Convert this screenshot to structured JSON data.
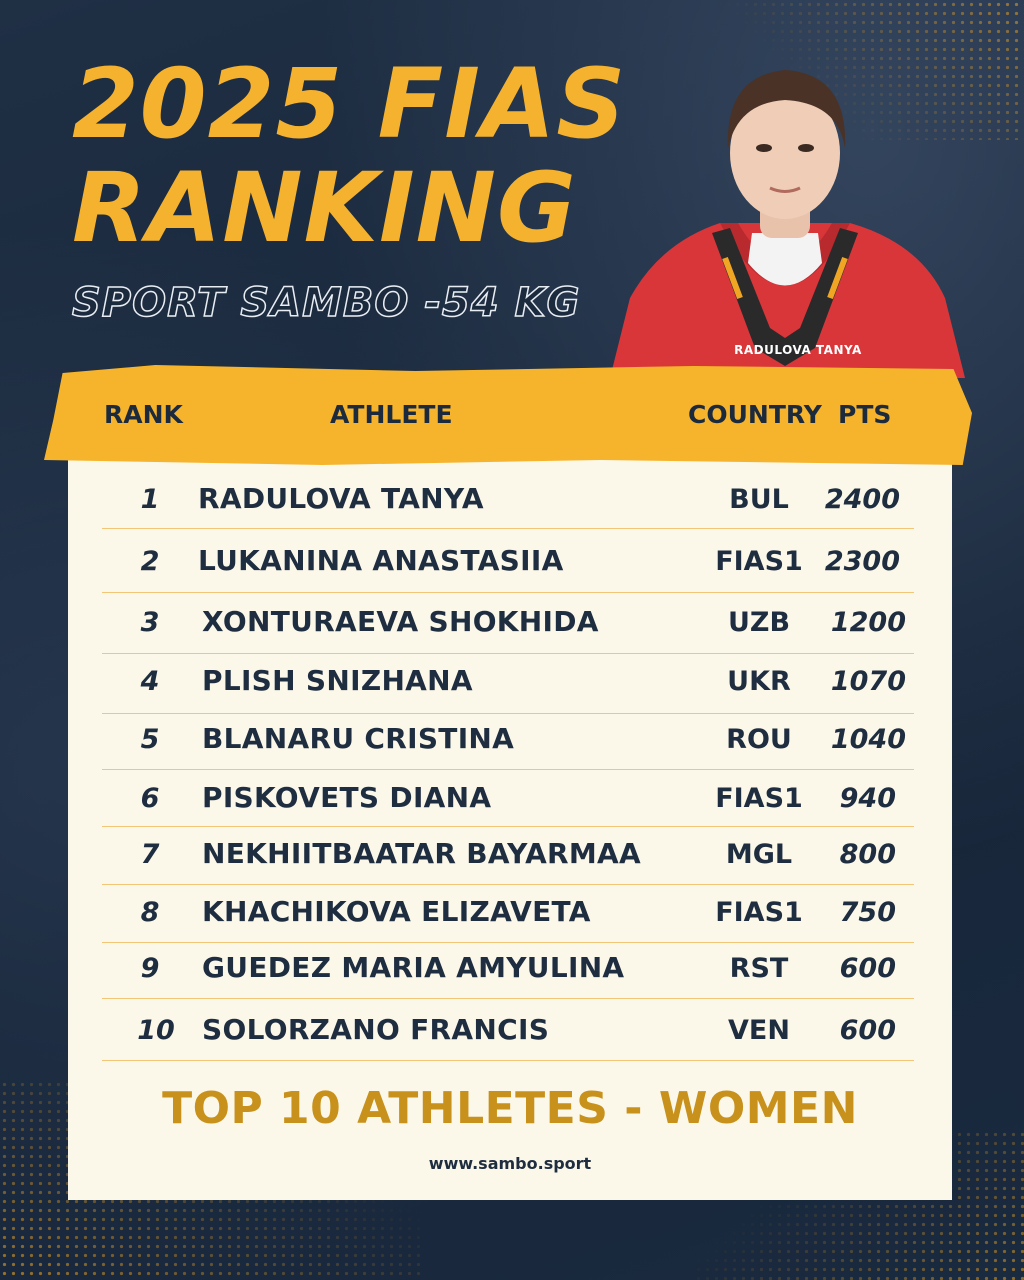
{
  "title_line1": "2025 FIAS",
  "title_line2": "RANKING",
  "subtitle": "SPORT SAMBO -54 KG",
  "photo_caption": "RADULOVA TANYA",
  "headers": {
    "rank": "RANK",
    "athlete": "ATHLETE",
    "country": "COUNTRY",
    "pts": "PTS"
  },
  "rows": [
    {
      "rank": "1",
      "name": "RADULOVA TANYA",
      "country": "BUL",
      "pts": "2400"
    },
    {
      "rank": "2",
      "name": "LUKANINA ANASTASIIA",
      "country": "FIAS1",
      "pts": "2300"
    },
    {
      "rank": "3",
      "name": "XONTURAEVA SHOKHIDA",
      "country": "UZB",
      "pts": "1200"
    },
    {
      "rank": "4",
      "name": "PLISH SNIZHANA",
      "country": "UKR",
      "pts": "1070"
    },
    {
      "rank": "5",
      "name": "BLANARU CRISTINA",
      "country": "ROU",
      "pts": "1040"
    },
    {
      "rank": "6",
      "name": "PISKOVETS DIANA",
      "country": "FIAS1",
      "pts": "940"
    },
    {
      "rank": "7",
      "name": "NEKHIITBAATAR BAYARMAA",
      "country": "MGL",
      "pts": "800"
    },
    {
      "rank": "8",
      "name": "KHACHIKOVA ELIZAVETA",
      "country": "FIAS1",
      "pts": "750"
    },
    {
      "rank": "9",
      "name": "GUEDEZ MARIA AMYULINA",
      "country": "RST",
      "pts": "600"
    },
    {
      "rank": "10",
      "name": "SOLORZANO FRANCIS",
      "country": "VEN",
      "pts": "600"
    }
  ],
  "footer_title": "TOP 10 ATHLETES - WOMEN",
  "footer_url": "www.sambo.sport",
  "colors": {
    "accent": "#f5b22e",
    "navy": "#1c2a3d",
    "paper": "#fbf8ea",
    "footer": "#c8911b",
    "jacket": "#d9363a"
  }
}
